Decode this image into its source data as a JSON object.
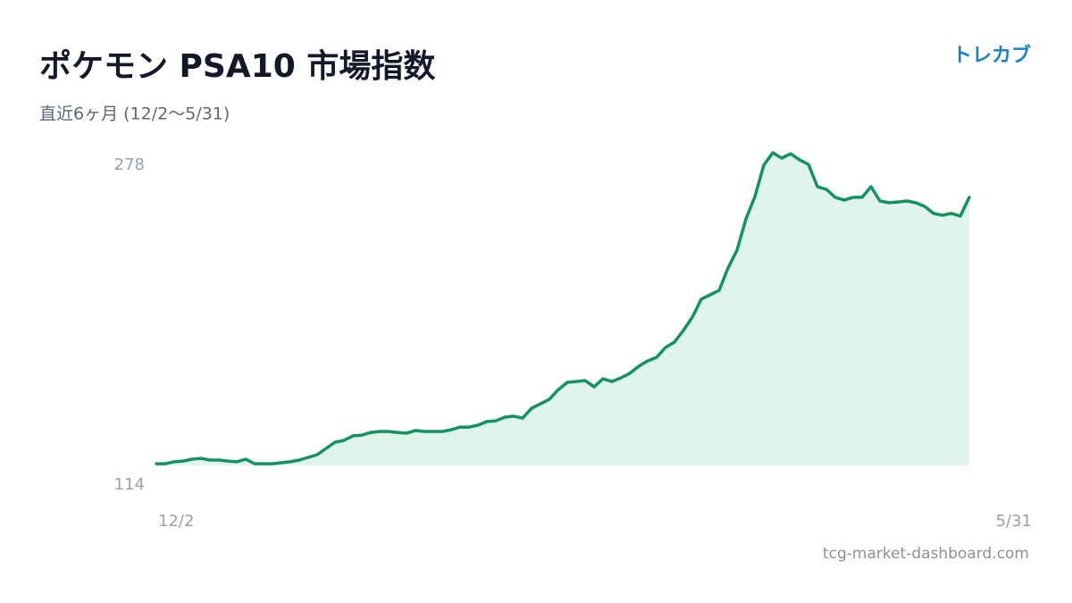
{
  "chart_data": {
    "type": "line",
    "title": "ポケモン PSA10 市場指数",
    "subtitle": "直近6ヶ月 (12/2〜5/31)",
    "brand": "トレカブ",
    "source": "tcg-market-dashboard.com",
    "categories": [
      "12/2",
      null,
      null,
      null,
      null,
      null,
      null,
      null,
      null,
      null,
      null,
      null,
      null,
      null,
      null,
      null,
      null,
      null,
      null,
      null,
      null,
      null,
      null,
      null,
      null,
      null,
      null,
      null,
      null,
      null,
      null,
      null,
      null,
      null,
      null,
      null,
      null,
      null,
      null,
      null,
      null,
      null,
      null,
      null,
      null,
      null,
      null,
      null,
      null,
      null,
      null,
      null,
      null,
      null,
      null,
      null,
      null,
      null,
      null,
      null,
      null,
      null,
      null,
      null,
      null,
      null,
      null,
      null,
      null,
      null,
      null,
      null,
      null,
      null,
      null,
      null,
      null,
      null,
      null,
      null,
      null,
      null,
      null,
      null,
      null,
      null,
      null,
      null,
      null,
      null,
      null,
      "5/31"
    ],
    "values": [
      114.9,
      114.9,
      115.9,
      116.3,
      117.3,
      117.7,
      116.8,
      116.8,
      116.3,
      115.9,
      117.3,
      114.9,
      114.9,
      114.9,
      115.4,
      115.9,
      116.8,
      118.2,
      119.6,
      122.9,
      126.2,
      127.1,
      129.5,
      129.9,
      131.3,
      131.8,
      131.8,
      131.3,
      130.9,
      132.3,
      131.8,
      131.8,
      131.8,
      132.7,
      134.1,
      134.1,
      135.1,
      137.0,
      137.4,
      139.3,
      139.8,
      138.8,
      144.0,
      146.3,
      148.7,
      153.8,
      157.6,
      158.0,
      158.5,
      155.2,
      159.5,
      158.0,
      159.9,
      162.3,
      166.0,
      168.8,
      170.7,
      175.9,
      178.7,
      184.8,
      191.8,
      201.2,
      203.5,
      205.8,
      217.6,
      226.9,
      243.3,
      255.0,
      271.5,
      278,
      275.2,
      277.5,
      274.3,
      271.9,
      260.2,
      258.8,
      254.6,
      253.2,
      254.6,
      254.6,
      260.2,
      252.7,
      251.8,
      252.2,
      252.7,
      251.8,
      249.9,
      246.2,
      245.2,
      246.2,
      244.8,
      254.6
    ],
    "color": "#13935f",
    "area_color": "#e0f3ec",
    "ylim": [
      114,
      278
    ],
    "yticks": [
      114,
      278
    ],
    "grid": false
  }
}
